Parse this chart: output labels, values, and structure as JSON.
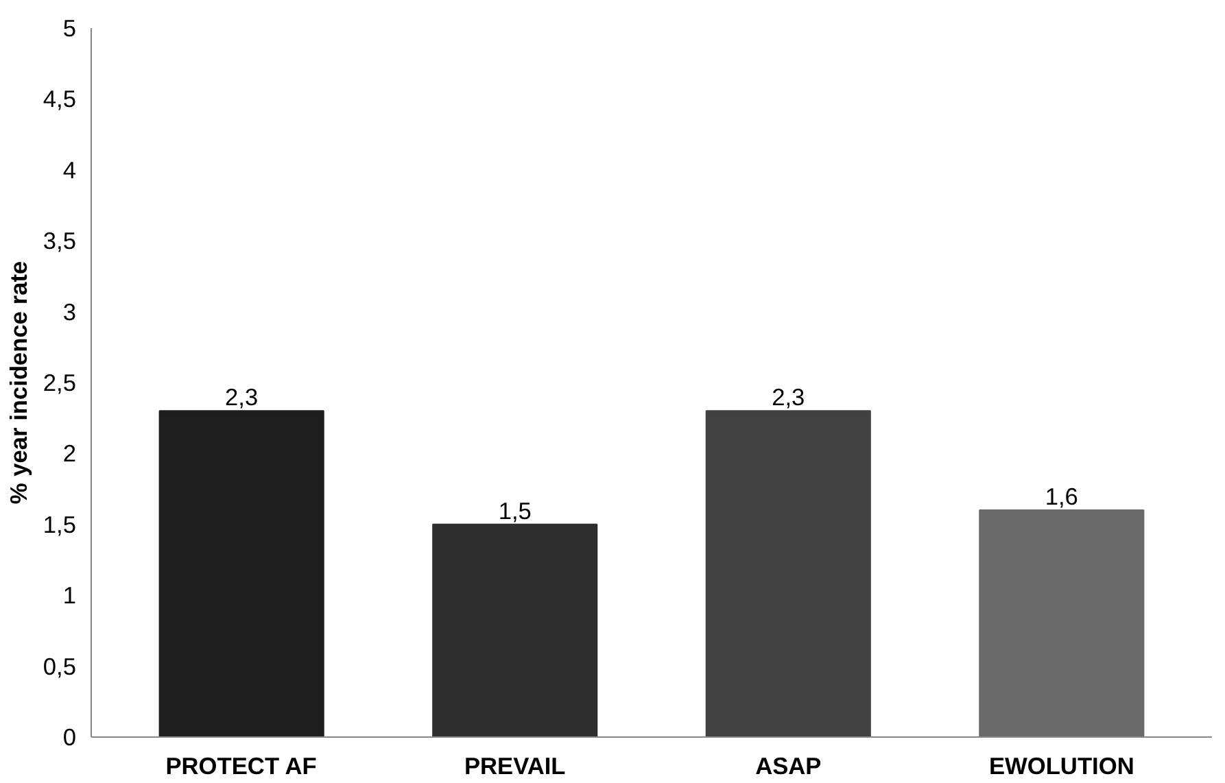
{
  "chart_data": {
    "type": "bar",
    "ylabel": "% year incidence rate",
    "categories": [
      "PROTECT AF",
      "PREVAIL",
      "ASAP",
      "EWOLUTION"
    ],
    "values": [
      2.3,
      1.5,
      2.3,
      1.6
    ],
    "colors": [
      "#1e1e1e",
      "#2e2e2e",
      "#414141",
      "#6a6a6a"
    ],
    "value_labels": [
      "2,3",
      "1,5",
      "2,3",
      "1,6"
    ],
    "ylim": [
      0,
      5
    ],
    "yticks": [
      0,
      {
        "value": 0.5,
        "label": "0,5"
      },
      1,
      {
        "value": 1.5,
        "label": "1,5"
      },
      2,
      {
        "value": 2.5,
        "label": "2,5"
      },
      3,
      {
        "value": 3.5,
        "label": "3,5"
      },
      4,
      {
        "value": 4.5,
        "label": "4,5"
      },
      5
    ],
    "grid": false
  }
}
